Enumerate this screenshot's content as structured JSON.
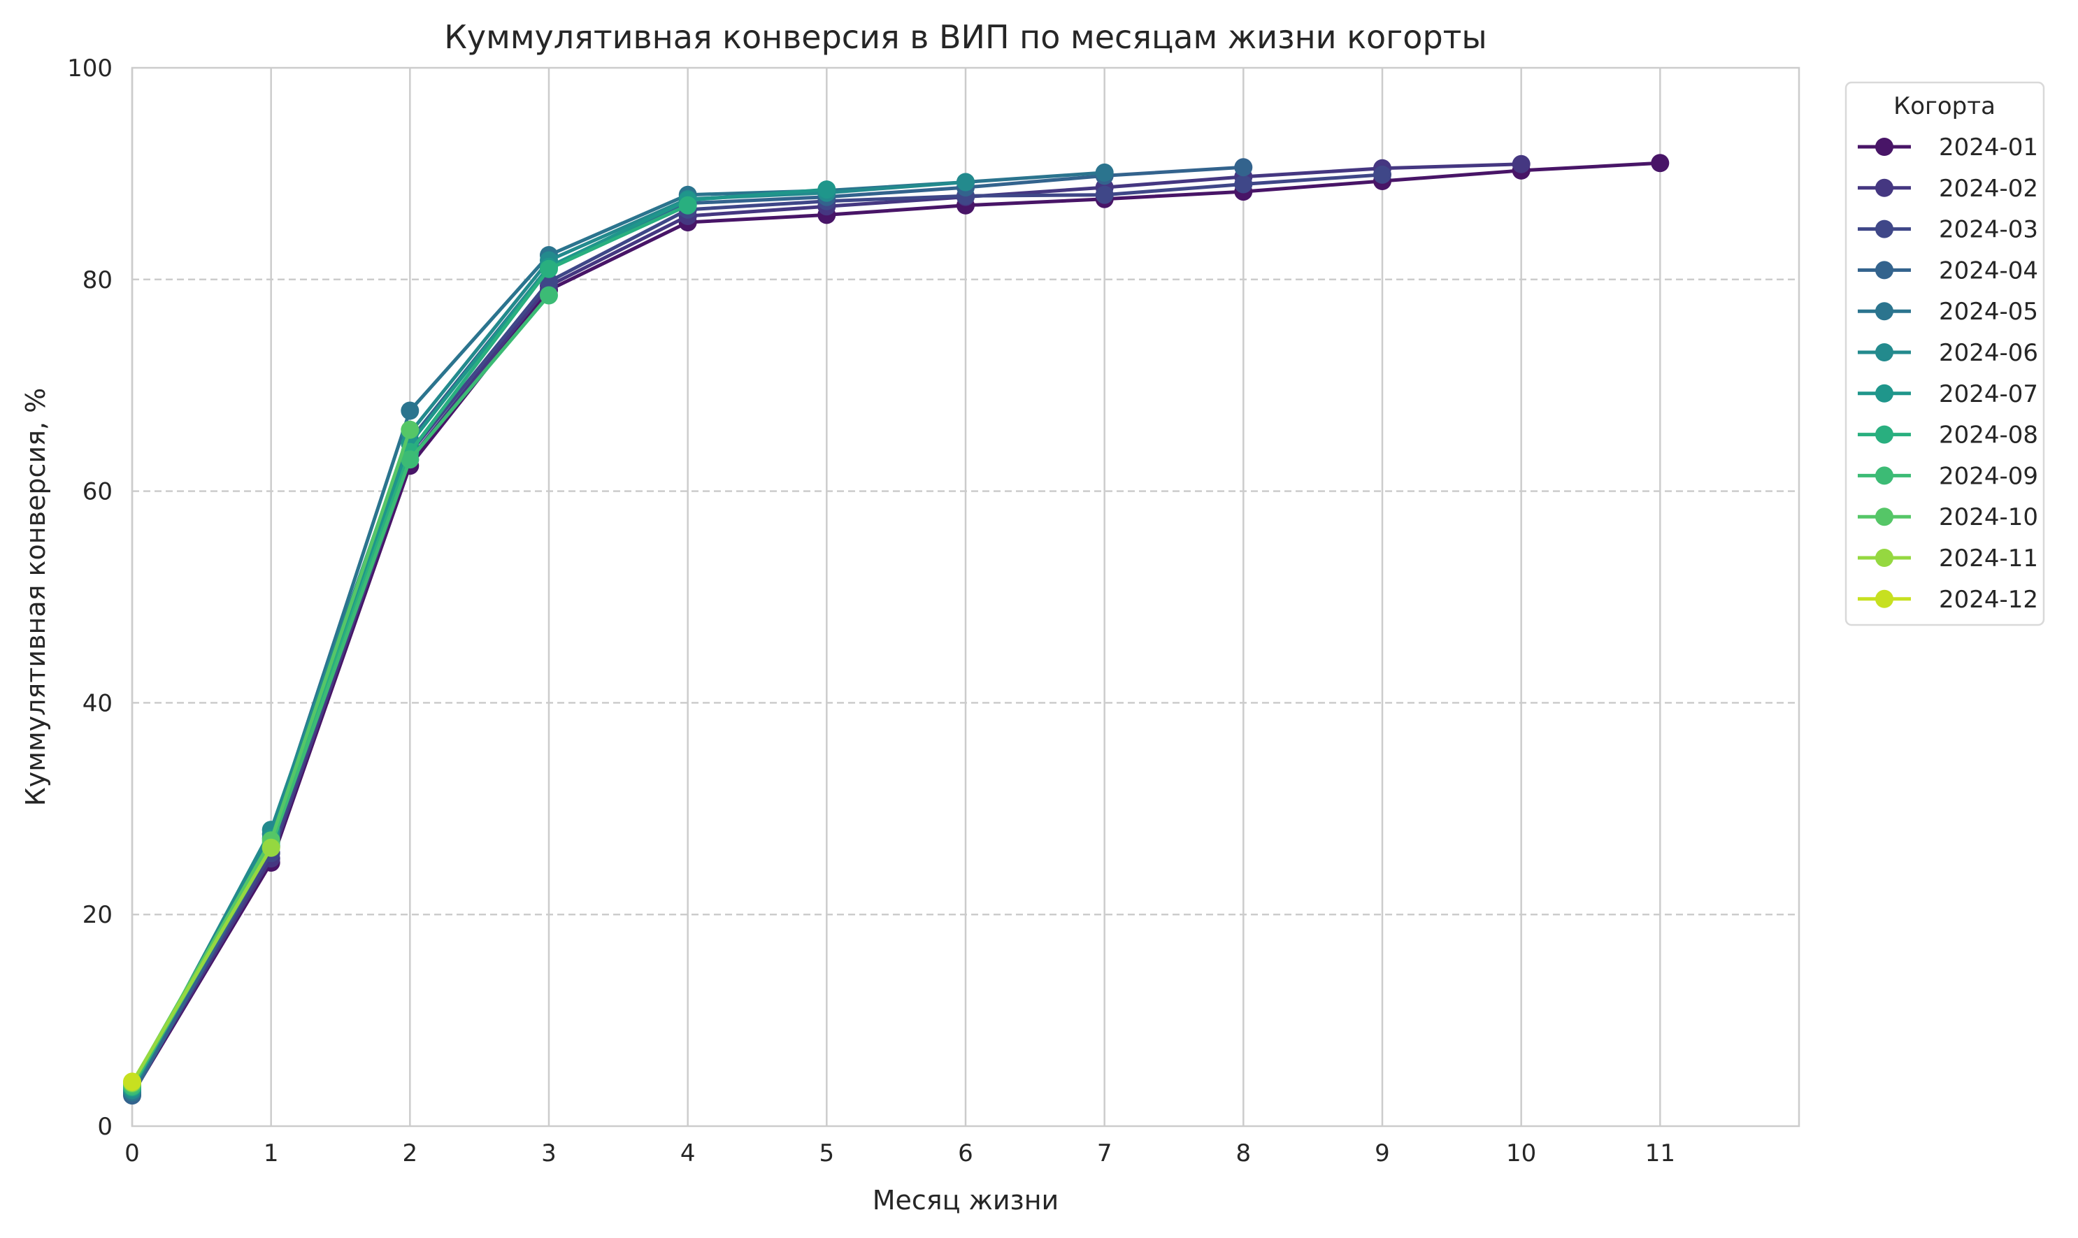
{
  "chart_data": {
    "type": "line",
    "title": "Куммулятивная конверсия в ВИП по месяцам жизни когорты",
    "xlabel": "Месяц жизни",
    "ylabel": "Куммулятивная конверсия, %",
    "xlim": [
      0,
      12
    ],
    "ylim": [
      0,
      100
    ],
    "x_ticks": [
      "0",
      "1",
      "2",
      "3",
      "4",
      "5",
      "6",
      "7",
      "8",
      "9",
      "10",
      "11"
    ],
    "x_tick_values": [
      0,
      1,
      2,
      3,
      4,
      5,
      6,
      7,
      8,
      9,
      10,
      11
    ],
    "y_ticks": [
      "0",
      "20",
      "40",
      "60",
      "80",
      "100"
    ],
    "y_tick_values": [
      0,
      20,
      40,
      60,
      80,
      100
    ],
    "grid": {
      "x": "solid",
      "y": "dashed"
    },
    "legend_title": "Когорта",
    "legend_position": "outside right, top",
    "series": [
      {
        "name": "2024-01",
        "color": "#481567",
        "values": [
          3.0,
          24.9,
          62.4,
          79.0,
          85.4,
          86.1,
          87.0,
          87.6,
          88.3,
          89.3,
          90.3,
          91.0
        ]
      },
      {
        "name": "2024-02",
        "color": "#453781",
        "values": [
          3.1,
          25.3,
          63.0,
          79.4,
          86.0,
          86.9,
          87.8,
          88.7,
          89.7,
          90.5,
          90.9
        ]
      },
      {
        "name": "2024-03",
        "color": "#3F4788",
        "values": [
          3.2,
          25.8,
          63.6,
          79.8,
          86.6,
          87.4,
          87.9,
          88.0,
          89.0,
          89.9
        ]
      },
      {
        "name": "2024-04",
        "color": "#33638D",
        "values": [
          2.9,
          26.4,
          64.8,
          81.2,
          87.2,
          87.8,
          88.7,
          89.8,
          90.6
        ]
      },
      {
        "name": "2024-05",
        "color": "#2B748E",
        "values": [
          3.2,
          27.6,
          67.6,
          82.3,
          88.0,
          88.4,
          89.2,
          90.1
        ]
      },
      {
        "name": "2024-06",
        "color": "#238A8D",
        "values": [
          3.4,
          28.0,
          65.5,
          81.8,
          87.6,
          88.2,
          89.2
        ]
      },
      {
        "name": "2024-07",
        "color": "#1F968B",
        "values": [
          3.6,
          27.2,
          64.5,
          81.2,
          87.5,
          88.5
        ]
      },
      {
        "name": "2024-08",
        "color": "#29AF7F",
        "values": [
          3.7,
          26.8,
          63.7,
          81.0,
          87.0
        ]
      },
      {
        "name": "2024-09",
        "color": "#3CBB75",
        "values": [
          3.8,
          26.5,
          63.0,
          78.5
        ]
      },
      {
        "name": "2024-10",
        "color": "#55C667",
        "values": [
          4.0,
          27.0,
          65.8
        ]
      },
      {
        "name": "2024-11",
        "color": "#95D840",
        "values": [
          4.1,
          26.3
        ]
      },
      {
        "name": "2024-12",
        "color": "#C7E020",
        "values": [
          4.2
        ]
      }
    ]
  }
}
